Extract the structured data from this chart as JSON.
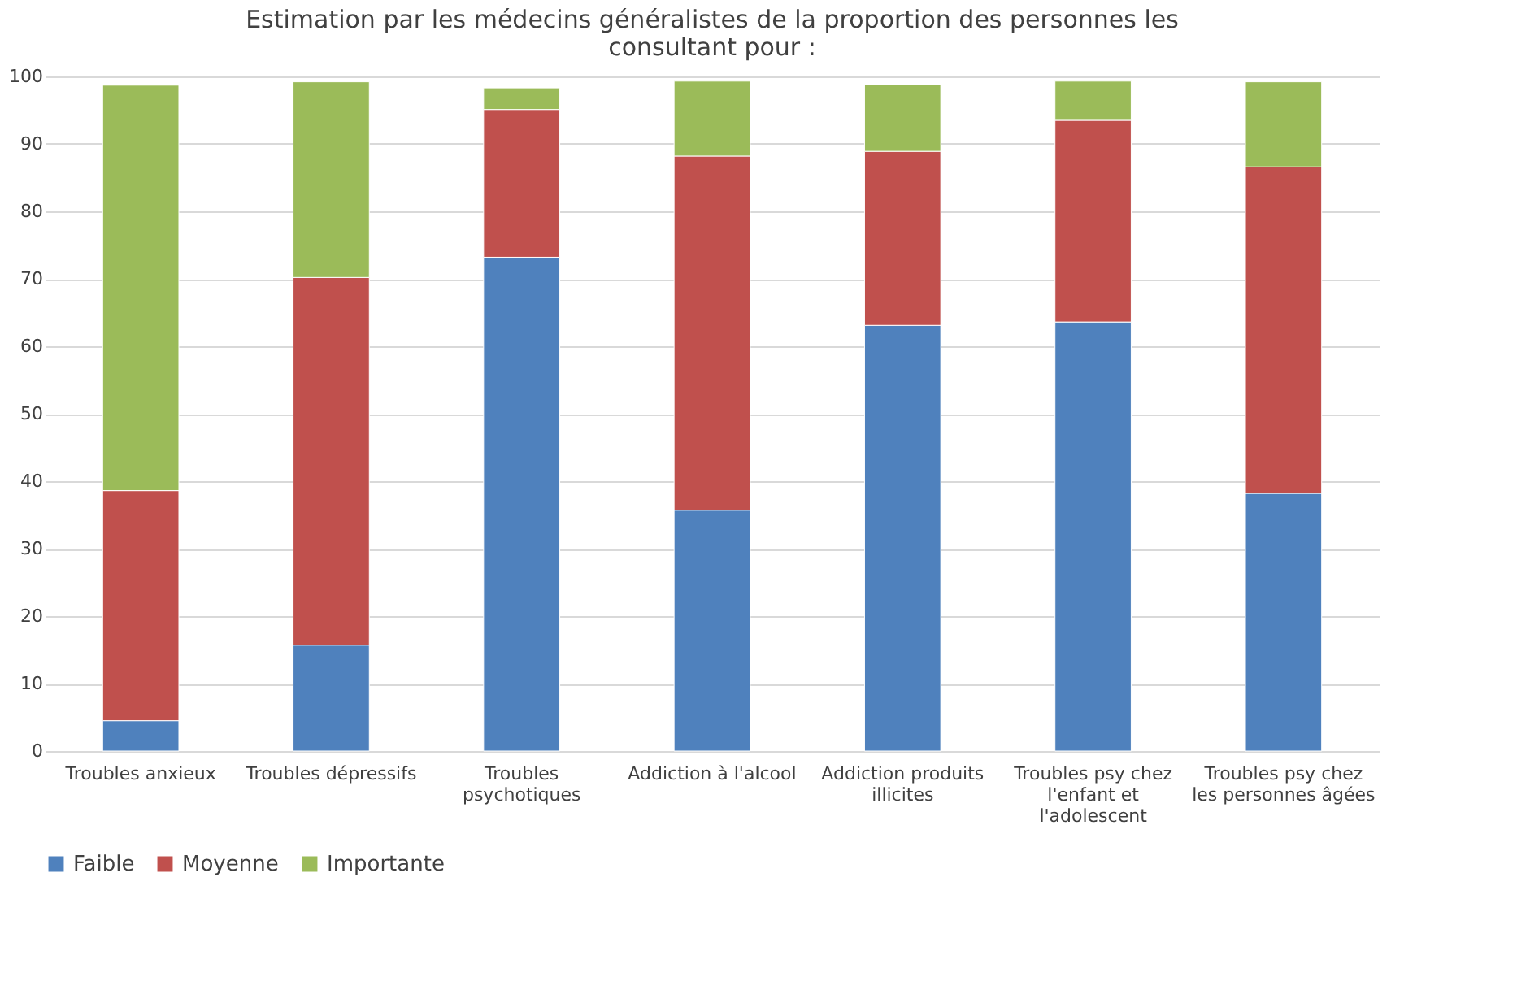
{
  "chart_data": {
    "type": "bar",
    "stacked": true,
    "title": "Estimation par les médecins généralistes de la proportion des personnes les consultant pour :",
    "categories": [
      "Troubles anxieux",
      "Troubles dépressifs",
      "Troubles psychotiques",
      "Addiction à l'alcool",
      "Addiction produits illicites",
      "Troubles psy chez l'enfant et l'adolescent",
      "Troubles psy chez les personnes âgées"
    ],
    "series": [
      {
        "name": "Faible",
        "color": "#4f81bd",
        "values": [
          4.5,
          15.7,
          73.2,
          35.7,
          63.1,
          63.6,
          38.2
        ]
      },
      {
        "name": "Moyenne",
        "color": "#c0504d",
        "values": [
          34.1,
          54.5,
          21.9,
          52.5,
          25.8,
          29.9,
          48.4
        ]
      },
      {
        "name": "Importante",
        "color": "#9bbb59",
        "values": [
          60.1,
          29.0,
          3.2,
          11.1,
          9.9,
          5.8,
          12.6
        ]
      }
    ],
    "ylim": [
      0,
      100
    ],
    "yticks": [
      0,
      10,
      20,
      30,
      40,
      50,
      60,
      70,
      80,
      90,
      100
    ],
    "grid": "y",
    "legend": "bottom"
  }
}
